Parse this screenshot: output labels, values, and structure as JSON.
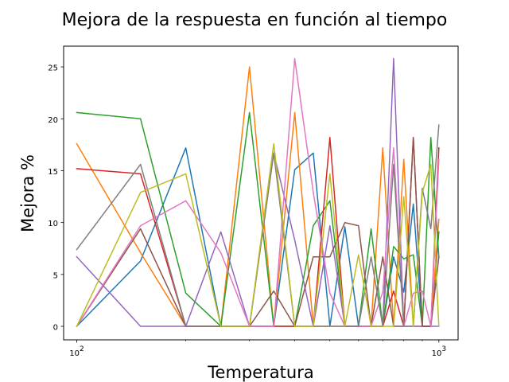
{
  "chart_data": {
    "type": "line",
    "title": "Mejora de la respuesta en función al tiempo",
    "xlabel": "Temperatura",
    "ylabel": "Mejora %",
    "xscale": "log",
    "xlim": [
      92,
      1130
    ],
    "ylim": [
      -1.3,
      27.0
    ],
    "grid": false,
    "yticks": [
      0,
      5,
      10,
      15,
      20,
      25
    ],
    "xticks": [
      {
        "value": 100,
        "base": "10",
        "exp": "2"
      },
      {
        "value": 1000,
        "base": "10",
        "exp": "3"
      }
    ],
    "x": [
      100,
      150,
      200,
      250,
      300,
      350,
      400,
      450,
      500,
      550,
      600,
      650,
      700,
      750,
      800,
      850,
      900,
      950,
      1000
    ],
    "series": [
      {
        "color": "#1f77b4",
        "values": [
          0,
          6.3,
          17.2,
          0,
          0,
          0,
          15.1,
          16.7,
          0,
          9.6,
          0,
          0,
          0,
          6.7,
          3.3,
          11.8,
          0,
          0,
          9.1
        ]
      },
      {
        "color": "#ff7f0e",
        "values": [
          17.6,
          7.1,
          0,
          0,
          25,
          0,
          20.6,
          0,
          0,
          0,
          0,
          0,
          17.2,
          0,
          16.1,
          0,
          0,
          0,
          10.3
        ]
      },
      {
        "color": "#2ca02c",
        "values": [
          20.6,
          20,
          3.2,
          0,
          20.6,
          0,
          0,
          9.7,
          12.1,
          0,
          0,
          9.4,
          0,
          7.7,
          6.5,
          6.9,
          0,
          18.2,
          6.7
        ]
      },
      {
        "color": "#d62728",
        "values": [
          15.2,
          14.7,
          0,
          0,
          0,
          0,
          0,
          0,
          18.2,
          0,
          0,
          0,
          0,
          3.4,
          0,
          18.2,
          0,
          0,
          17.2
        ]
      },
      {
        "color": "#9467bd",
        "values": [
          6.7,
          0,
          0,
          9.1,
          0,
          16.7,
          8.3,
          0,
          9.7,
          0,
          0,
          0,
          0,
          25.8,
          0,
          0,
          0,
          0,
          0
        ]
      },
      {
        "color": "#8c564b",
        "values": [
          0,
          9.4,
          0,
          0,
          0,
          3.4,
          0,
          6.7,
          6.7,
          10,
          9.7,
          0,
          6.7,
          0,
          0,
          18.2,
          0,
          0,
          6.7
        ]
      },
      {
        "color": "#e377c2",
        "values": [
          0,
          9.7,
          12.1,
          7.1,
          0,
          0,
          25.8,
          12.9,
          3.2,
          0,
          0,
          0,
          3.3,
          17.2,
          0,
          3.2,
          3.4,
          0,
          16.1
        ]
      },
      {
        "color": "#7f7f7f",
        "values": [
          7.4,
          15.6,
          0,
          0,
          0,
          16.7,
          0,
          0,
          0,
          0,
          0,
          6.7,
          0,
          15.6,
          0,
          0,
          13.3,
          9.4,
          19.4
        ]
      },
      {
        "color": "#bcbd22",
        "values": [
          0,
          12.9,
          14.7,
          0,
          0,
          17.6,
          0,
          0,
          14.7,
          0,
          6.9,
          0,
          0,
          0,
          12.5,
          0,
          12.9,
          15.6,
          0
        ]
      }
    ]
  }
}
